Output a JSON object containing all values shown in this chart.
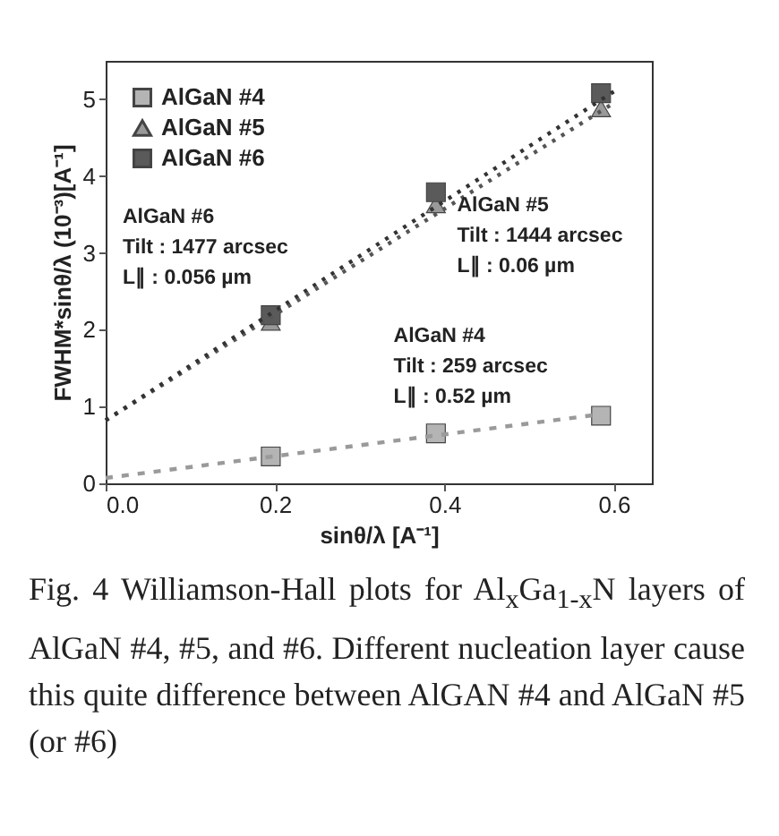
{
  "chart_data": {
    "type": "scatter",
    "xlabel": "sinθ/λ [A⁻¹]",
    "ylabel": "FWHM*sinθ/λ (10⁻³)[A⁻¹]",
    "xlim": [
      0,
      0.645
    ],
    "ylim": [
      0,
      5.5
    ],
    "xticks": [
      {
        "value": 0,
        "label": "0.0"
      },
      {
        "value": 0.2,
        "label": "0.2"
      },
      {
        "value": 0.4,
        "label": "0.4"
      },
      {
        "value": 0.6,
        "label": "0.6"
      }
    ],
    "yticks": [
      0,
      1,
      2,
      3,
      4,
      5
    ],
    "grid": false,
    "legend": "top left",
    "series": [
      {
        "name": "AlGaN #4",
        "color": "#b4b4b4",
        "marker": "square",
        "x": [
          0.195,
          0.39,
          0.585
        ],
        "values": [
          0.35,
          0.65,
          0.88
        ]
      },
      {
        "name": "AlGaN #5",
        "color": "#999999",
        "marker": "triangle",
        "x": [
          0.195,
          0.39,
          0.585
        ],
        "values": [
          2.1,
          3.63,
          4.88
        ]
      },
      {
        "name": "AlGaN #6",
        "color": "#5a5a5a",
        "marker": "square",
        "x": [
          0.195,
          0.39,
          0.585
        ],
        "values": [
          2.19,
          3.79,
          5.08
        ]
      },
      {
        "type": "line",
        "color": "#9a9a9a",
        "line_style": "dashed",
        "x": [
          0,
          0.585
        ],
        "values": [
          0.07,
          0.9
        ]
      },
      {
        "type": "line",
        "color": "#555555",
        "line_style": "dotted",
        "x": [
          0,
          0.6
        ],
        "values": [
          0.82,
          4.95
        ]
      },
      {
        "type": "line",
        "color": "#333333",
        "line_style": "dotted",
        "x": [
          0,
          0.6
        ],
        "values": [
          0.82,
          5.1
        ]
      }
    ],
    "annotations": [
      "AlGaN #6\nTilt : 1477 arcsec\nL∥ : 0.056 µm",
      "AlGaN #5\nTilt : 1444 arcsec\nL∥ : 0.06 µm",
      "AlGaN #4\nTilt : 259 arcsec\nL∥ : 0.52 µm",
      "Fig. 4 Williamson-Hall plots for Al$_{x}$Ga$_{1-x}$N layers of AlGaN #4, #5, and #6. Different nucleation layer cause this quite difference between AlGAN #4 and AlGaN #5 (or #6)"
    ]
  }
}
